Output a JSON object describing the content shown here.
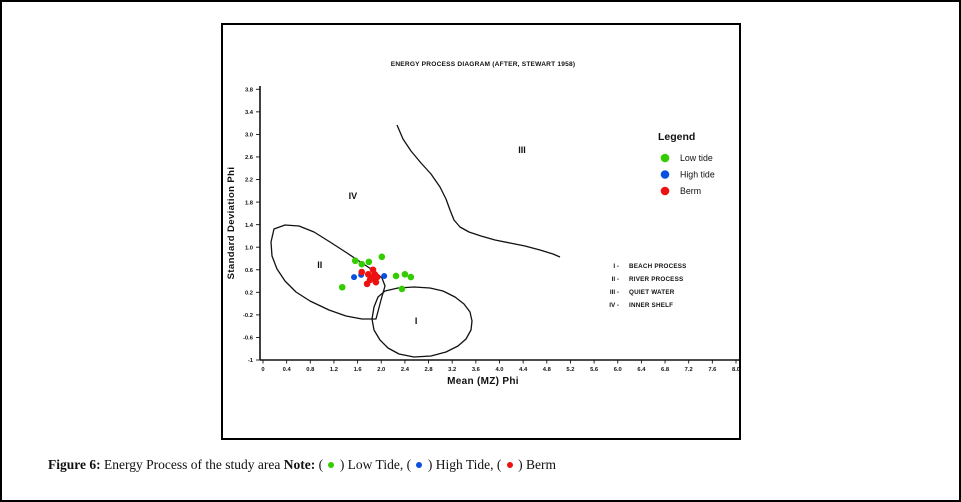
{
  "figure": {
    "caption": {
      "figure_label": "Figure 6:",
      "text": "Energy Process of the study area",
      "note_label": "Note:",
      "note_items": [
        {
          "label": "Low Tide",
          "color": "#33cc00"
        },
        {
          "label": "High Tide",
          "color": "#0a50e0"
        },
        {
          "label": "Berm",
          "color": "#ee1111"
        }
      ]
    }
  },
  "chart_data": {
    "type": "scatter",
    "title": "ENERGY PROCESS DIAGRAM (AFTER, STEWART 1958)",
    "xlabel": "Mean (MZ) Phi",
    "ylabel": "Standard Deviation Phi",
    "xlim": [
      0,
      8.0
    ],
    "ylim": [
      -1,
      3.8
    ],
    "grid": false,
    "legend_position": "upper right",
    "x_ticks": [
      "0",
      "0.4",
      "0.8",
      "1.2",
      "1.6",
      "2.0",
      "2.4",
      "2.8",
      "3.2",
      "3.6",
      "4.0",
      "4.4",
      "4.8",
      "5.2",
      "5.6",
      "6.0",
      "6.4",
      "6.8",
      "7.2",
      "7.6",
      "8.0"
    ],
    "y_ticks": [
      "3.8",
      "3.4",
      "3.0",
      "2.6",
      "2.2",
      "1.8",
      "1.4",
      "1.0",
      "0.6",
      "0.2",
      "-0.2",
      "-0.6",
      "-1"
    ],
    "legend_title": "Legend",
    "series": [
      {
        "name": "Low tide",
        "color": "#33cc00",
        "marker_radius": 3.3,
        "points": [
          [
            1.56,
            0.76
          ],
          [
            1.67,
            0.7
          ],
          [
            1.79,
            0.74
          ],
          [
            2.01,
            0.83
          ],
          [
            2.25,
            0.49
          ],
          [
            2.4,
            0.52
          ],
          [
            2.5,
            0.47
          ],
          [
            1.34,
            0.29
          ],
          [
            2.35,
            0.26
          ]
        ]
      },
      {
        "name": "High tide",
        "color": "#0a50e0",
        "marker_radius": 3.0,
        "points": [
          [
            1.54,
            0.47
          ],
          [
            1.66,
            0.51
          ],
          [
            2.05,
            0.49
          ]
        ]
      },
      {
        "name": "Berm",
        "color": "#ee1111",
        "marker_radius": 3.3,
        "points": [
          [
            1.67,
            0.56
          ],
          [
            1.78,
            0.52
          ],
          [
            1.84,
            0.45
          ],
          [
            1.89,
            0.52
          ],
          [
            1.93,
            0.47
          ],
          [
            1.86,
            0.6
          ],
          [
            1.76,
            0.35
          ],
          [
            1.91,
            0.38
          ],
          [
            1.81,
            0.42
          ]
        ]
      }
    ],
    "region_key": [
      {
        "numeral": "I -",
        "label": "BEACH PROCESS"
      },
      {
        "numeral": "II -",
        "label": "RIVER PROCESS"
      },
      {
        "numeral": "III -",
        "label": "QUIET WATER"
      },
      {
        "numeral": "IV -",
        "label": "INNER SHELF"
      }
    ],
    "region_labels": [
      {
        "text": "I",
        "x": 2.59,
        "y": -0.31
      },
      {
        "text": "II",
        "x": 0.96,
        "y": 0.68
      },
      {
        "text": "III",
        "x": 4.38,
        "y": 2.72
      },
      {
        "text": "IV",
        "x": 1.52,
        "y": 1.91
      }
    ]
  }
}
